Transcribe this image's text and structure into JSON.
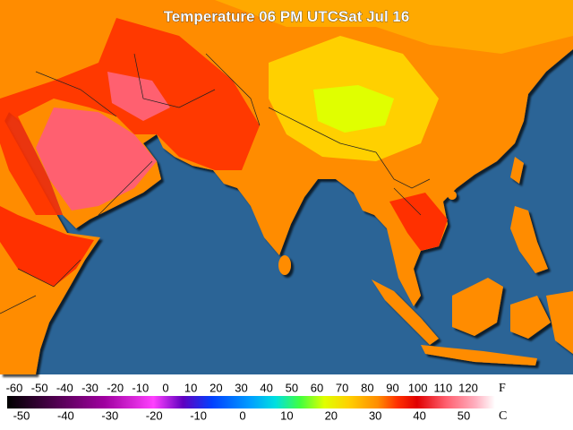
{
  "title": "Temperature 06 PM UTCSat Jul 16",
  "legend": {
    "f_labels": [
      -60,
      -50,
      -40,
      -30,
      -20,
      -10,
      0,
      10,
      20,
      30,
      40,
      50,
      60,
      70,
      80,
      90,
      100,
      110,
      120
    ],
    "f_unit": "F",
    "c_labels": [
      -50,
      -40,
      -30,
      -20,
      -10,
      0,
      10,
      20,
      30,
      40,
      50
    ],
    "c_unit": "C"
  }
}
